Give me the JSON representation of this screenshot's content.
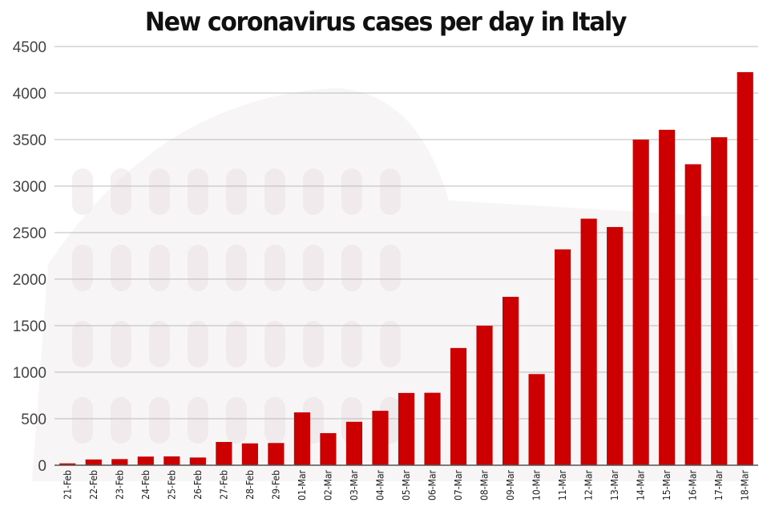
{
  "chart_data": {
    "type": "bar",
    "title": "New coronavirus cases per day in Italy",
    "xlabel": "",
    "ylabel": "",
    "ylim": [
      0,
      4500
    ],
    "yticks": [
      0,
      500,
      1000,
      1500,
      2000,
      2500,
      3000,
      3500,
      4000,
      4500
    ],
    "grid": true,
    "categories": [
      "21-Feb",
      "22-Feb",
      "23-Feb",
      "24-Feb",
      "25-Feb",
      "26-Feb",
      "27-Feb",
      "28-Feb",
      "29-Feb",
      "01-Mar",
      "02-Mar",
      "03-Mar",
      "04-Mar",
      "05-Mar",
      "06-Mar",
      "07-Mar",
      "08-Mar",
      "09-Mar",
      "10-Mar",
      "11-Mar",
      "12-Mar",
      "13-Mar",
      "14-Mar",
      "15-Mar",
      "16-Mar",
      "17-Mar",
      "18-Mar"
    ],
    "values": [
      20,
      62,
      66,
      93,
      95,
      83,
      250,
      235,
      239,
      568,
      345,
      467,
      585,
      777,
      779,
      1260,
      1500,
      1810,
      980,
      2320,
      2650,
      2560,
      3500,
      3605,
      3235,
      3525,
      4225
    ],
    "colors": {
      "bar": "#cc0000",
      "grid": "#bbbbbb",
      "axis": "#555555"
    }
  }
}
